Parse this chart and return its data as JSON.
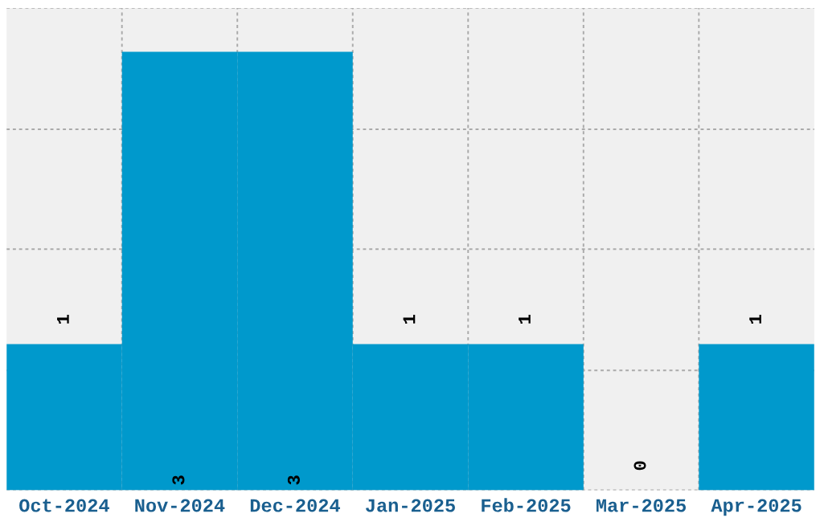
{
  "chart_data": {
    "type": "bar",
    "categories": [
      "Oct-2024",
      "Nov-2024",
      "Dec-2024",
      "Jan-2025",
      "Feb-2025",
      "Mar-2025",
      "Apr-2025"
    ],
    "values": [
      1,
      3,
      3,
      1,
      1,
      0,
      1
    ],
    "color": "#0099cc",
    "ylim": [
      0,
      3.3
    ],
    "yticks": [
      {
        "value": 0,
        "label": null
      },
      {
        "value": 0.82,
        "label": null
      },
      {
        "value": 1.65,
        "label": null
      },
      {
        "value": 2.47,
        "label": null
      },
      {
        "value": 3.3,
        "label": null
      }
    ],
    "grid": true,
    "data_labels": true
  }
}
